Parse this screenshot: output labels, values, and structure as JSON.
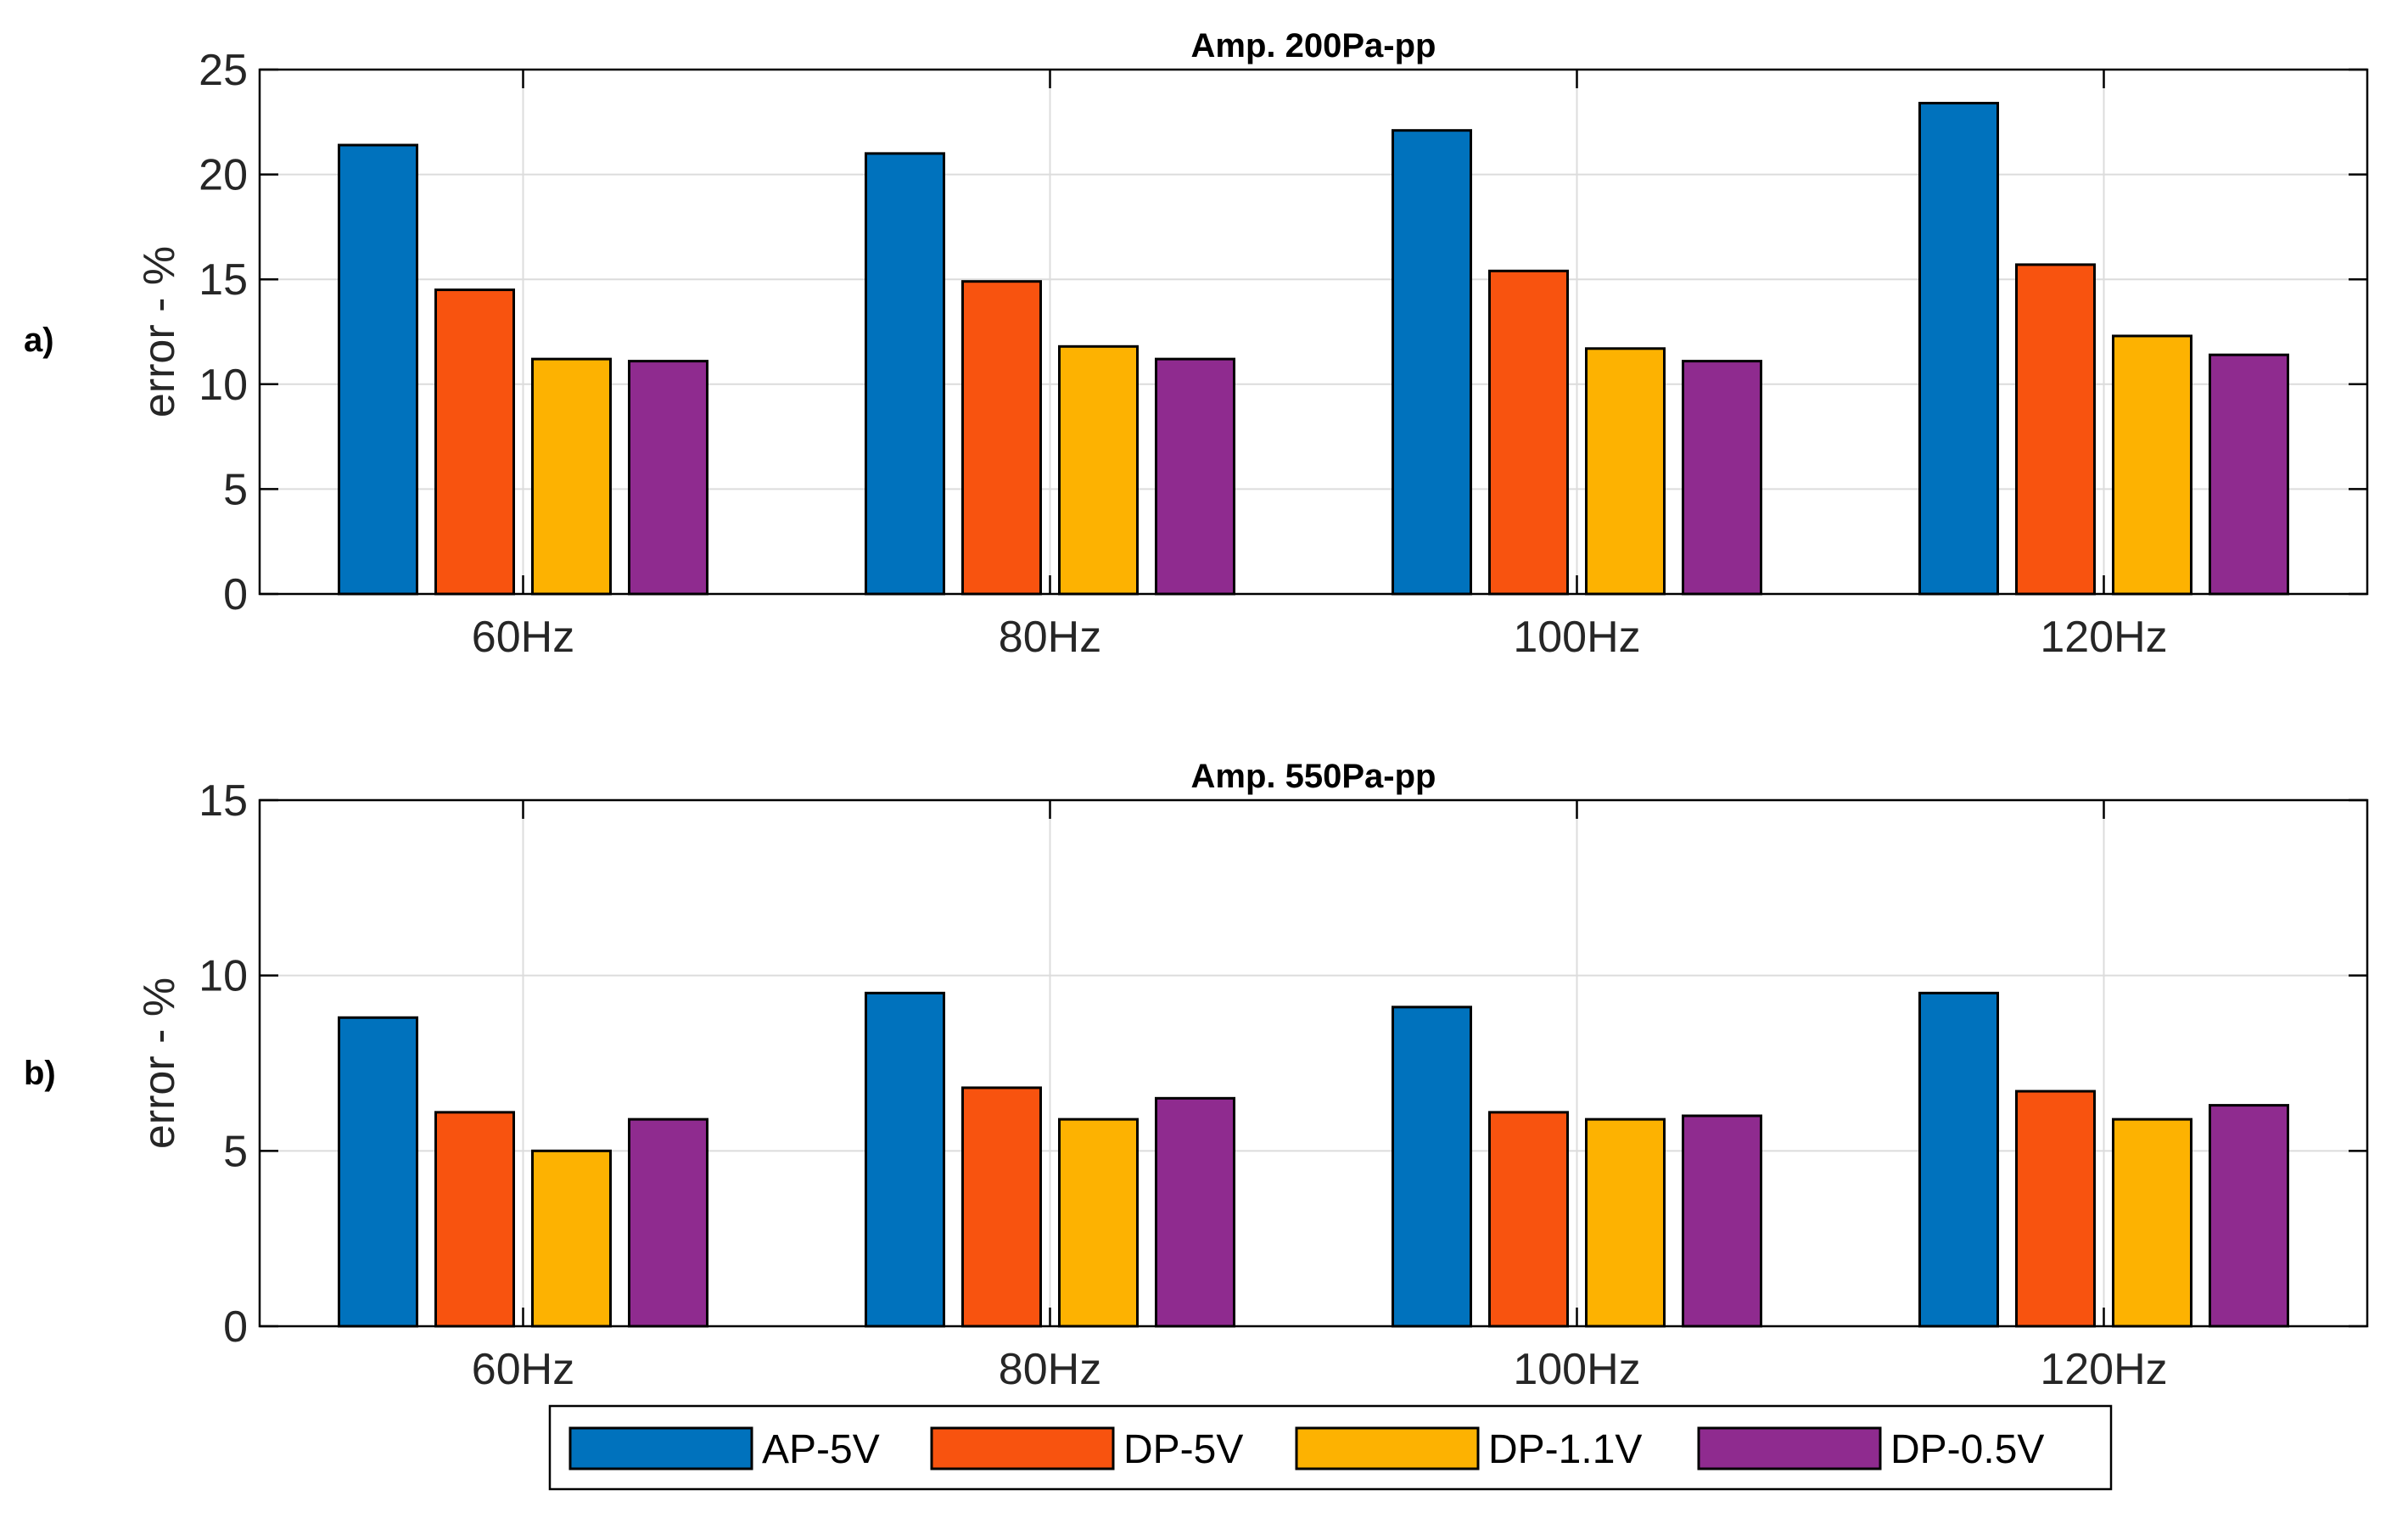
{
  "colors": {
    "AP-5V": "#0072BD",
    "DP-5V": "#F8530F",
    "DP-1.1V": "#FDB201",
    "DP-0.5V": "#8F2B8F",
    "grid": "#dcdcdc",
    "axis": "#000000"
  },
  "legend": {
    "labels": [
      "AP-5V",
      "DP-5V",
      "DP-1.1V",
      "DP-0.5V"
    ]
  },
  "chart_data": [
    {
      "type": "bar",
      "panel_label": "a)",
      "title": "Amp. 200Pa-pp",
      "xlabel": "",
      "ylabel": "error - %",
      "ylim": [
        0,
        25
      ],
      "yticks": [
        "0",
        "5",
        "10",
        "15",
        "20",
        "25"
      ],
      "categories": [
        "60Hz",
        "80Hz",
        "100Hz",
        "120Hz"
      ],
      "grid": true,
      "series": [
        {
          "name": "AP-5V",
          "values": [
            21.4,
            21.0,
            22.1,
            23.4
          ]
        },
        {
          "name": "DP-5V",
          "values": [
            14.5,
            14.9,
            15.4,
            15.7
          ]
        },
        {
          "name": "DP-1.1V",
          "values": [
            11.2,
            11.8,
            11.7,
            12.3
          ]
        },
        {
          "name": "DP-0.5V",
          "values": [
            11.1,
            11.2,
            11.1,
            11.4
          ]
        }
      ]
    },
    {
      "type": "bar",
      "panel_label": "b)",
      "title": "Amp. 550Pa-pp",
      "xlabel": "",
      "ylabel": "error - %",
      "ylim": [
        0,
        15
      ],
      "yticks": [
        "0",
        "5",
        "10",
        "15"
      ],
      "categories": [
        "60Hz",
        "80Hz",
        "100Hz",
        "120Hz"
      ],
      "grid": true,
      "series": [
        {
          "name": "AP-5V",
          "values": [
            8.8,
            9.5,
            9.1,
            9.5
          ]
        },
        {
          "name": "DP-5V",
          "values": [
            6.1,
            6.8,
            6.1,
            6.7
          ]
        },
        {
          "name": "DP-1.1V",
          "values": [
            5.0,
            5.9,
            5.9,
            5.9
          ]
        },
        {
          "name": "DP-0.5V",
          "values": [
            5.9,
            6.5,
            6.0,
            6.3
          ]
        }
      ]
    }
  ]
}
